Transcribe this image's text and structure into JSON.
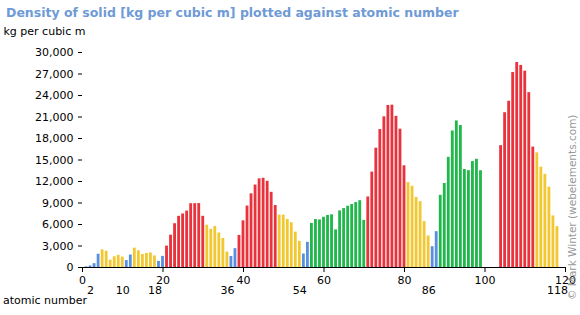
{
  "chart_data": {
    "type": "bar",
    "title": "Density of solid [kg per cubic m] plotted against atomic number",
    "y_label": "kg per cubic m",
    "x_label": "atomic number",
    "credit": "© Mark Winter (webelements.com)",
    "x": [
      1,
      2,
      3,
      4,
      5,
      6,
      7,
      8,
      9,
      10,
      11,
      12,
      13,
      14,
      15,
      16,
      17,
      18,
      19,
      20,
      21,
      22,
      23,
      24,
      25,
      26,
      27,
      28,
      29,
      30,
      31,
      32,
      33,
      34,
      35,
      36,
      37,
      38,
      39,
      40,
      41,
      42,
      43,
      44,
      45,
      46,
      47,
      48,
      49,
      50,
      51,
      52,
      53,
      54,
      55,
      56,
      57,
      58,
      59,
      60,
      61,
      62,
      63,
      64,
      65,
      66,
      67,
      68,
      69,
      70,
      71,
      72,
      73,
      74,
      75,
      76,
      77,
      78,
      79,
      80,
      81,
      82,
      83,
      84,
      85,
      86,
      87,
      88,
      89,
      90,
      91,
      92,
      93,
      94,
      95,
      96,
      97,
      98,
      99,
      100,
      101,
      102,
      103,
      104,
      105,
      106,
      107,
      108,
      109,
      110,
      111,
      112,
      113,
      114,
      115,
      116,
      117,
      118
    ],
    "values": [
      88,
      214,
      535,
      1848,
      2460,
      2267,
      1026,
      1495,
      1700,
      1444,
      968,
      1738,
      2700,
      2330,
      1823,
      1960,
      2030,
      1616,
      856,
      1550,
      2985,
      4507,
      6110,
      7140,
      7470,
      7874,
      8900,
      8908,
      8920,
      7140,
      5904,
      5323,
      5727,
      4819,
      4050,
      2155,
      1532,
      2630,
      4472,
      6511,
      8570,
      10280,
      11500,
      12370,
      12450,
      12023,
      10490,
      8650,
      7310,
      7310,
      6697,
      6240,
      4940,
      3640,
      1879,
      3510,
      6146,
      6689,
      6640,
      7010,
      7264,
      7353,
      5244,
      7901,
      8219,
      8551,
      8795,
      9066,
      9321,
      6570,
      9841,
      13310,
      16650,
      19250,
      21020,
      22610,
      22650,
      21090,
      19300,
      14190,
      11850,
      11340,
      9780,
      9196,
      6400,
      4400,
      2900,
      5000,
      10070,
      11724,
      15370,
      19050,
      20450,
      19816,
      13670,
      13510,
      14780,
      15100,
      13500,
      null,
      null,
      null,
      null,
      17000,
      21600,
      23200,
      27200,
      28600,
      28200,
      27400,
      24400,
      16800,
      16000,
      14000,
      13000,
      11200,
      7200,
      5700
    ],
    "colors": [
      "#5a8fe0",
      "#5a8fe0",
      "#5a8fe0",
      "#5a8fe0",
      "#f2c832",
      "#f2c832",
      "#f2c832",
      "#f2c832",
      "#f2c832",
      "#f2c832",
      "#5a8fe0",
      "#5a8fe0",
      "#f2c832",
      "#f2c832",
      "#f2c832",
      "#f2c832",
      "#f2c832",
      "#f2c832",
      "#5a8fe0",
      "#5a8fe0",
      "#e8323c",
      "#e8323c",
      "#e8323c",
      "#e8323c",
      "#e8323c",
      "#e8323c",
      "#e8323c",
      "#e8323c",
      "#e8323c",
      "#e8323c",
      "#f2c832",
      "#f2c832",
      "#f2c832",
      "#f2c832",
      "#f2c832",
      "#f2c832",
      "#5a8fe0",
      "#5a8fe0",
      "#e8323c",
      "#e8323c",
      "#e8323c",
      "#e8323c",
      "#e8323c",
      "#e8323c",
      "#e8323c",
      "#e8323c",
      "#e8323c",
      "#e8323c",
      "#f2c832",
      "#f2c832",
      "#f2c832",
      "#f2c832",
      "#f2c832",
      "#f2c832",
      "#5a8fe0",
      "#5a8fe0",
      "#1fb84a",
      "#1fb84a",
      "#1fb84a",
      "#1fb84a",
      "#1fb84a",
      "#1fb84a",
      "#1fb84a",
      "#1fb84a",
      "#1fb84a",
      "#1fb84a",
      "#1fb84a",
      "#1fb84a",
      "#1fb84a",
      "#1fb84a",
      "#e8323c",
      "#e8323c",
      "#e8323c",
      "#e8323c",
      "#e8323c",
      "#e8323c",
      "#e8323c",
      "#e8323c",
      "#e8323c",
      "#e8323c",
      "#f2c832",
      "#f2c832",
      "#f2c832",
      "#f2c832",
      "#f2c832",
      "#f2c832",
      "#5a8fe0",
      "#5a8fe0",
      "#1fb84a",
      "#1fb84a",
      "#1fb84a",
      "#1fb84a",
      "#1fb84a",
      "#1fb84a",
      "#1fb84a",
      "#1fb84a",
      "#1fb84a",
      "#1fb84a",
      "#1fb84a",
      "#1fb84a",
      "#1fb84a",
      "#1fb84a",
      "#e8323c",
      "#e8323c",
      "#e8323c",
      "#e8323c",
      "#e8323c",
      "#e8323c",
      "#e8323c",
      "#e8323c",
      "#e8323c",
      "#e8323c",
      "#f2c832",
      "#f2c832",
      "#f2c832",
      "#f2c832",
      "#f2c832",
      "#f2c832"
    ],
    "xlim": [
      0,
      120
    ],
    "xticks": [
      0,
      20,
      40,
      60,
      80,
      100,
      120
    ],
    "period_ticks": [
      2,
      10,
      18,
      36,
      54,
      86,
      118
    ],
    "ylim": [
      0,
      30000
    ],
    "yticks": [
      0,
      3000,
      6000,
      9000,
      12000,
      15000,
      18000,
      21000,
      24000,
      27000,
      30000
    ],
    "grid": false
  }
}
